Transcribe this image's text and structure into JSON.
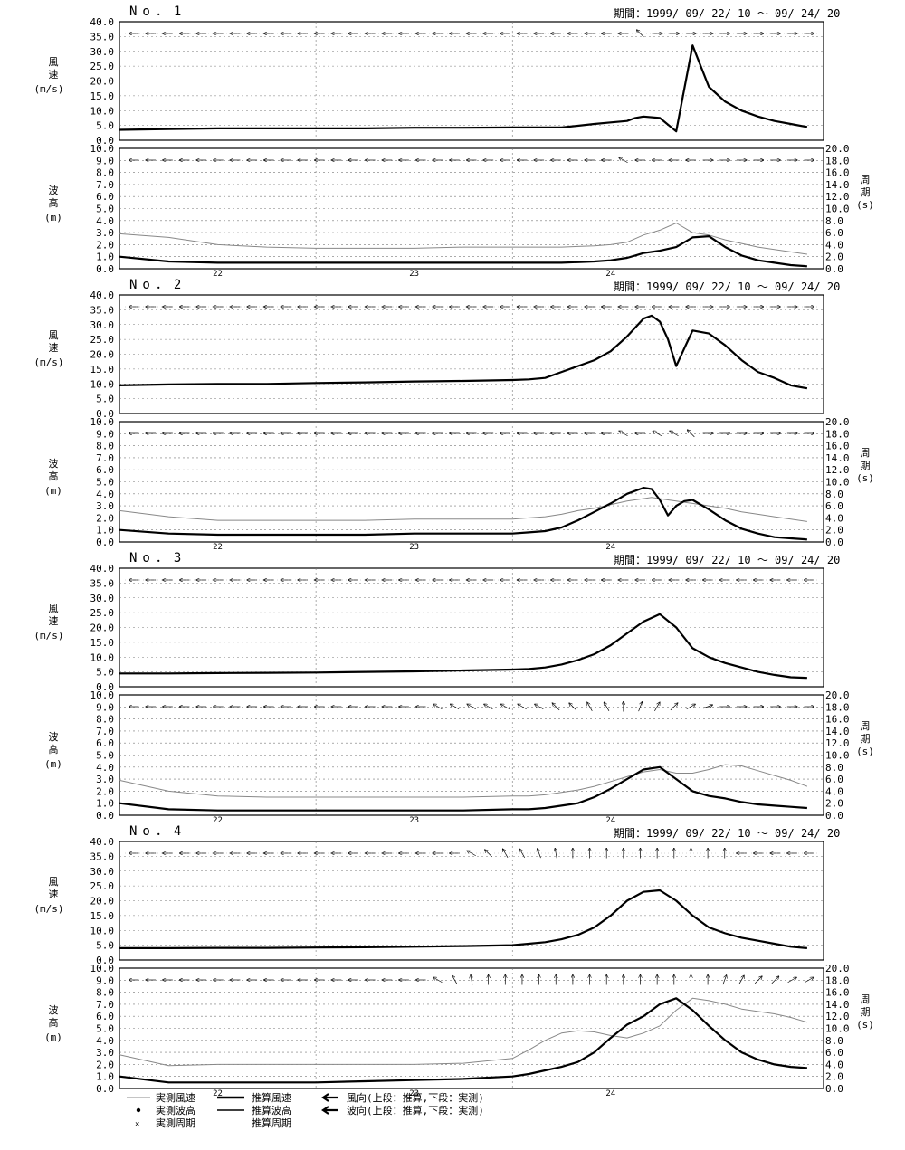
{
  "period_label": "期間：1999/ 09/ 22/ 10 〜 09/ 24/ 20",
  "wind_axis_label": [
    "風",
    "速",
    "(m/s)"
  ],
  "wave_axis_label": [
    "波",
    "高",
    "(m)"
  ],
  "period_axis_label": [
    "周",
    "期",
    "(s)"
  ],
  "wind_yticks": [
    "0.0",
    "5.0",
    "10.0",
    "15.0",
    "20.0",
    "25.0",
    "30.0",
    "35.0",
    "40.0"
  ],
  "wave_yticks": [
    "0.0",
    "1.0",
    "2.0",
    "3.0",
    "4.0",
    "5.0",
    "6.0",
    "7.0",
    "8.0",
    "9.0",
    "10.0"
  ],
  "period_yticks": [
    "0.0",
    "2.0",
    "4.0",
    "6.0",
    "8.0",
    "10.0",
    "12.0",
    "14.0",
    "16.0",
    "18.0",
    "20.0"
  ],
  "day_labels": [
    "22",
    "23",
    "24"
  ],
  "legend": {
    "col1": [
      "実測風速",
      "実測波高",
      "実測周期"
    ],
    "col2": [
      "推算風速",
      "推算波高",
      "推算周期"
    ],
    "col3": [
      "風向(上段：推算,下段：実測)",
      "波向(上段：推算,下段：実測)"
    ]
  },
  "chart_data": [
    {
      "type": "line",
      "station": "No．1",
      "x_hours": [
        0,
        6,
        12,
        18,
        24,
        30,
        36,
        42,
        48,
        54,
        58,
        60,
        62,
        63,
        64,
        66,
        68,
        70,
        72,
        74,
        76,
        78,
        80,
        82,
        84
      ],
      "wind": {
        "ylim": [
          0,
          40
        ],
        "series": [
          {
            "name": "推算風速",
            "values": [
              3.5,
              3.8,
              4.0,
              4.0,
              4.0,
              4.0,
              4.2,
              4.2,
              4.3,
              4.3,
              5.5,
              6.0,
              6.5,
              7.5,
              8.0,
              7.5,
              3.0,
              32,
              18,
              13,
              10,
              8,
              6.5,
              5.5,
              4.5
            ]
          }
        ]
      },
      "wave": {
        "ylim": [
          0,
          10
        ],
        "series": [
          {
            "name": "実測波高",
            "values": [
              2.9,
              2.6,
              2.0,
              1.8,
              1.7,
              1.7,
              1.7,
              1.8,
              1.8,
              1.8,
              1.9,
              2.0,
              2.2,
              2.5,
              2.8,
              3.2,
              3.8,
              3.0,
              2.8,
              2.4,
              2.1,
              1.8,
              1.6,
              1.4,
              1.2
            ]
          },
          {
            "name": "推算波高",
            "values": [
              1.0,
              0.6,
              0.5,
              0.5,
              0.5,
              0.5,
              0.5,
              0.5,
              0.5,
              0.5,
              0.6,
              0.7,
              0.9,
              1.1,
              1.3,
              1.5,
              1.8,
              2.6,
              2.7,
              1.8,
              1.1,
              0.7,
              0.5,
              0.3,
              0.2
            ]
          }
        ]
      },
      "wind_dirs": [
        180,
        180,
        180,
        180,
        180,
        180,
        180,
        180,
        180,
        180,
        180,
        180,
        180,
        180,
        180,
        180,
        180,
        180,
        180,
        180,
        180,
        180,
        180,
        180,
        180,
        180,
        180,
        180,
        180,
        180,
        135,
        0,
        0,
        0,
        0,
        0,
        0,
        0,
        0,
        0,
        0
      ],
      "wave_dirs": [
        180,
        180,
        180,
        180,
        180,
        180,
        180,
        180,
        180,
        180,
        180,
        180,
        180,
        180,
        180,
        180,
        180,
        180,
        180,
        180,
        180,
        180,
        180,
        180,
        180,
        180,
        180,
        180,
        180,
        150,
        180,
        180,
        180,
        180,
        0,
        0,
        0,
        0,
        0,
        0,
        0
      ]
    },
    {
      "type": "line",
      "station": "No．2",
      "x_hours": [
        0,
        6,
        12,
        18,
        24,
        30,
        36,
        42,
        48,
        50,
        52,
        54,
        56,
        58,
        60,
        62,
        64,
        65,
        66,
        67,
        68,
        69,
        70,
        72,
        74,
        76,
        78,
        80,
        82,
        84
      ],
      "wind": {
        "ylim": [
          0,
          40
        ],
        "series": [
          {
            "name": "推算風速",
            "values": [
              9.5,
              9.8,
              10,
              10,
              10.3,
              10.5,
              10.8,
              11,
              11.3,
              11.5,
              12,
              14,
              16,
              18,
              21,
              26,
              32,
              33,
              31,
              25,
              16,
              22,
              28,
              27,
              23,
              18,
              14,
              12,
              9.5,
              8.5
            ]
          }
        ]
      },
      "wave": {
        "ylim": [
          0,
          10
        ],
        "series": [
          {
            "name": "実測波高",
            "values": [
              2.6,
              2.1,
              1.8,
              1.8,
              1.8,
              1.8,
              1.9,
              1.9,
              1.9,
              2.0,
              2.1,
              2.3,
              2.6,
              2.8,
              3.1,
              3.4,
              3.6,
              3.7,
              3.6,
              3.5,
              3.4,
              3.3,
              3.2,
              3.0,
              2.8,
              2.5,
              2.3,
              2.1,
              1.9,
              1.7
            ]
          },
          {
            "name": "推算波高",
            "values": [
              1.0,
              0.7,
              0.6,
              0.6,
              0.6,
              0.6,
              0.7,
              0.7,
              0.7,
              0.8,
              0.9,
              1.2,
              1.8,
              2.5,
              3.2,
              4.0,
              4.5,
              4.4,
              3.5,
              2.2,
              3.0,
              3.4,
              3.5,
              2.7,
              1.8,
              1.1,
              0.7,
              0.4,
              0.3,
              0.2
            ]
          }
        ]
      },
      "wind_dirs": [
        180,
        180,
        180,
        180,
        180,
        180,
        180,
        180,
        180,
        180,
        180,
        180,
        180,
        180,
        180,
        180,
        180,
        180,
        180,
        180,
        180,
        180,
        180,
        180,
        180,
        180,
        180,
        180,
        180,
        180,
        180,
        180,
        180,
        180,
        0,
        0,
        0,
        0,
        0,
        0,
        0
      ],
      "wave_dirs": [
        180,
        180,
        180,
        180,
        180,
        180,
        180,
        180,
        180,
        180,
        180,
        180,
        180,
        180,
        180,
        180,
        180,
        180,
        180,
        180,
        180,
        180,
        180,
        180,
        180,
        180,
        180,
        180,
        180,
        150,
        180,
        150,
        150,
        135,
        0,
        0,
        0,
        0,
        0,
        0,
        0
      ]
    },
    {
      "type": "line",
      "station": "No．3",
      "x_hours": [
        0,
        6,
        12,
        18,
        24,
        30,
        36,
        42,
        48,
        50,
        52,
        54,
        56,
        58,
        60,
        62,
        64,
        66,
        68,
        70,
        72,
        74,
        76,
        78,
        80,
        82,
        84
      ],
      "wind": {
        "ylim": [
          0,
          40
        ],
        "series": [
          {
            "name": "推算風速",
            "values": [
              4.5,
              4.5,
              4.6,
              4.7,
              4.8,
              5.0,
              5.2,
              5.5,
              5.8,
              6.0,
              6.5,
              7.5,
              9.0,
              11,
              14,
              18,
              22,
              24.5,
              20,
              13,
              10,
              8,
              6.5,
              5,
              4,
              3.2,
              3.0
            ]
          }
        ]
      },
      "wave": {
        "ylim": [
          0,
          10
        ],
        "series": [
          {
            "name": "実測波高",
            "values": [
              2.9,
              2.0,
              1.6,
              1.5,
              1.5,
              1.5,
              1.5,
              1.5,
              1.6,
              1.6,
              1.7,
              1.9,
              2.1,
              2.4,
              2.8,
              3.2,
              3.6,
              3.8,
              3.5,
              3.5,
              3.8,
              4.2,
              4.1,
              3.7,
              3.3,
              2.9,
              2.4
            ]
          },
          {
            "name": "推算波高",
            "values": [
              1.0,
              0.5,
              0.4,
              0.4,
              0.4,
              0.4,
              0.4,
              0.4,
              0.5,
              0.5,
              0.6,
              0.8,
              1.0,
              1.5,
              2.2,
              3.0,
              3.8,
              4.0,
              3.0,
              2.0,
              1.6,
              1.4,
              1.1,
              0.9,
              0.8,
              0.7,
              0.6
            ]
          }
        ]
      },
      "wind_dirs": [
        180,
        180,
        180,
        180,
        180,
        180,
        180,
        180,
        180,
        180,
        180,
        180,
        180,
        180,
        180,
        180,
        180,
        180,
        180,
        180,
        180,
        180,
        180,
        180,
        180,
        180,
        180,
        180,
        180,
        180,
        180,
        180,
        180,
        180,
        180,
        180,
        180,
        180,
        180,
        180,
        180
      ],
      "wave_dirs": [
        180,
        180,
        180,
        180,
        180,
        180,
        180,
        180,
        180,
        180,
        180,
        180,
        180,
        180,
        180,
        180,
        180,
        180,
        150,
        150,
        150,
        150,
        150,
        150,
        150,
        135,
        135,
        120,
        120,
        90,
        70,
        60,
        45,
        30,
        20,
        0,
        0,
        0,
        0,
        0,
        0
      ]
    },
    {
      "type": "line",
      "station": "No．4",
      "x_hours": [
        0,
        6,
        12,
        18,
        24,
        30,
        36,
        42,
        48,
        50,
        52,
        54,
        56,
        58,
        60,
        62,
        64,
        66,
        68,
        70,
        72,
        74,
        76,
        78,
        80,
        82,
        84
      ],
      "wind": {
        "ylim": [
          0,
          40
        ],
        "series": [
          {
            "name": "推算風速",
            "values": [
              4.0,
              4.0,
              4.1,
              4.1,
              4.2,
              4.3,
              4.5,
              4.7,
              5.0,
              5.5,
              6.0,
              7.0,
              8.5,
              11,
              15,
              20,
              23,
              23.5,
              20,
              15,
              11,
              9,
              7.5,
              6.5,
              5.5,
              4.5,
              4.0
            ]
          }
        ]
      },
      "wave": {
        "ylim": [
          0,
          10
        ],
        "series": [
          {
            "name": "実測波高",
            "values": [
              2.8,
              1.9,
              2.0,
              2.0,
              2.0,
              2.0,
              2.0,
              2.1,
              2.5,
              3.2,
              4.0,
              4.6,
              4.8,
              4.7,
              4.4,
              4.2,
              4.6,
              5.2,
              6.5,
              7.5,
              7.3,
              7.0,
              6.6,
              6.4,
              6.2,
              5.9,
              5.5
            ]
          },
          {
            "name": "推算波高",
            "values": [
              1.0,
              0.5,
              0.5,
              0.5,
              0.5,
              0.6,
              0.7,
              0.8,
              1.0,
              1.2,
              1.5,
              1.8,
              2.2,
              3.0,
              4.2,
              5.3,
              6.0,
              7.0,
              7.5,
              6.5,
              5.2,
              4.0,
              3.0,
              2.4,
              2.0,
              1.8,
              1.7
            ]
          }
        ]
      },
      "wind_dirs": [
        180,
        180,
        180,
        180,
        180,
        180,
        180,
        180,
        180,
        180,
        180,
        180,
        180,
        180,
        180,
        180,
        180,
        180,
        180,
        180,
        150,
        135,
        120,
        120,
        110,
        100,
        90,
        90,
        90,
        90,
        90,
        90,
        90,
        90,
        90,
        90,
        180,
        180,
        180,
        180,
        180
      ],
      "wave_dirs": [
        180,
        180,
        180,
        180,
        180,
        180,
        180,
        180,
        180,
        180,
        180,
        180,
        180,
        180,
        180,
        180,
        180,
        180,
        150,
        120,
        100,
        90,
        90,
        90,
        90,
        90,
        90,
        90,
        90,
        90,
        90,
        90,
        90,
        90,
        90,
        70,
        60,
        45,
        45,
        30,
        30
      ]
    }
  ]
}
